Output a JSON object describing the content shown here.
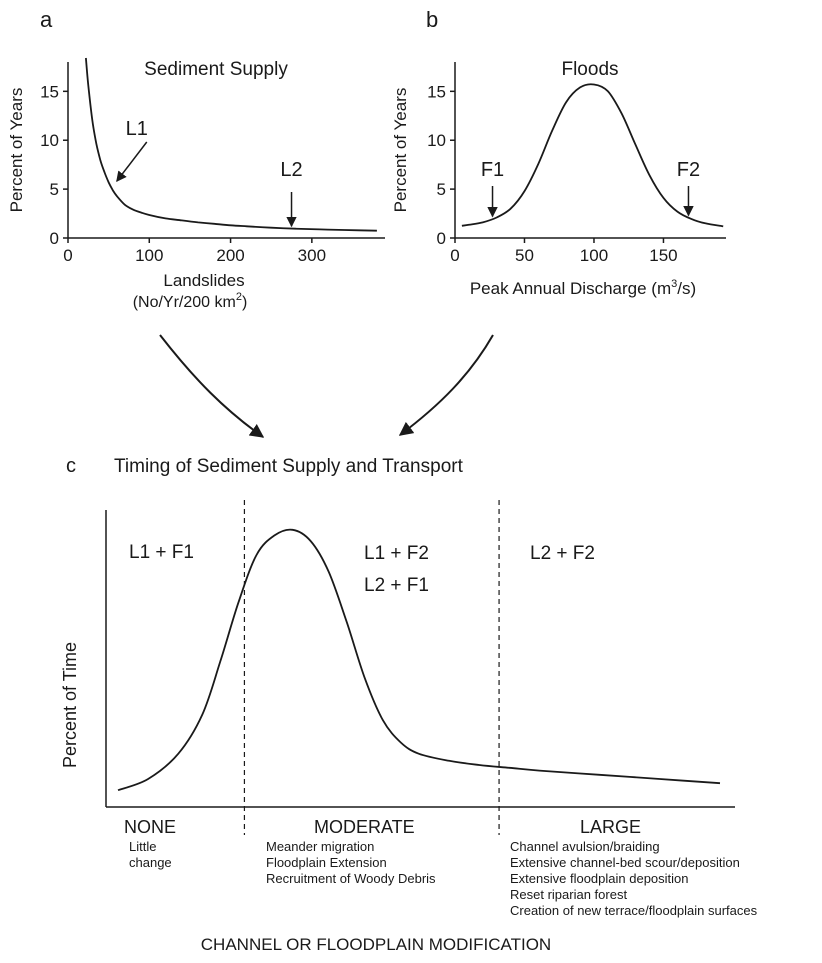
{
  "panels": {
    "a": {
      "letter": "a",
      "title": "Sediment Supply"
    },
    "b": {
      "letter": "b",
      "title": "Floods"
    },
    "c": {
      "letter": "c",
      "title": "Timing of Sediment Supply and Transport"
    }
  },
  "chart_data": [
    {
      "id": "a",
      "type": "line",
      "title": "Sediment Supply",
      "xlabel": "Landslides",
      "xlabel_line2_base": "(No/Yr/200 km",
      "xlabel_line2_sup": "2",
      "xlabel_line2_end": ")",
      "ylabel": "Percent of Years",
      "xlim": [
        0,
        390
      ],
      "ylim": [
        0,
        18
      ],
      "xticks": [
        0,
        100,
        200,
        300
      ],
      "yticks": [
        0,
        5,
        10,
        15
      ],
      "series": [
        {
          "x": [
            22,
            25,
            30,
            35,
            40,
            45,
            50,
            55,
            60,
            70,
            80,
            90,
            100,
            120,
            140,
            160,
            180,
            200,
            220,
            250,
            280,
            310,
            340,
            380
          ],
          "y": [
            18.8,
            15.6,
            12.0,
            9.6,
            7.9,
            6.7,
            5.7,
            4.9,
            4.3,
            3.4,
            2.9,
            2.6,
            2.35,
            2.0,
            1.8,
            1.6,
            1.45,
            1.3,
            1.2,
            1.05,
            0.95,
            0.88,
            0.82,
            0.75
          ]
        }
      ],
      "annotations": [
        {
          "label": "L1",
          "x": 60,
          "y": 5.5
        },
        {
          "label": "L2",
          "x": 275,
          "y": 0.9
        }
      ]
    },
    {
      "id": "b",
      "type": "line",
      "title": "Floods",
      "xlabel_base": "Peak Annual Discharge (m",
      "xlabel_sup": "3",
      "xlabel_end": "/s)",
      "ylabel": "Percent of Years",
      "xlim": [
        0,
        195
      ],
      "ylim": [
        0,
        18
      ],
      "xticks": [
        0,
        50,
        100,
        150
      ],
      "yticks": [
        0,
        5,
        10,
        15
      ],
      "series": [
        {
          "x": [
            5,
            10,
            20,
            30,
            40,
            50,
            60,
            70,
            80,
            90,
            100,
            110,
            120,
            130,
            140,
            150,
            160,
            170,
            180,
            193
          ],
          "y": [
            1.25,
            1.35,
            1.6,
            2.1,
            3.0,
            4.8,
            7.6,
            11.0,
            13.9,
            15.4,
            15.7,
            15.0,
            12.7,
            9.5,
            6.4,
            4.1,
            2.7,
            1.95,
            1.5,
            1.2
          ]
        }
      ],
      "annotations": [
        {
          "label": "F1",
          "x": 27,
          "y": 1.9
        },
        {
          "label": "F2",
          "x": 168,
          "y": 2.0
        }
      ]
    },
    {
      "id": "c",
      "type": "line",
      "title": "Timing of Sediment Supply and Transport",
      "ylabel": "Percent of Time",
      "xlim": [
        0,
        100
      ],
      "ylim": [
        0,
        100
      ],
      "dividers": [
        21,
        63.3
      ],
      "series": [
        {
          "x": [
            0,
            5,
            10,
            14,
            17,
            20,
            23,
            26,
            29,
            32,
            35,
            38,
            41,
            44,
            47,
            50,
            55,
            60,
            65,
            70,
            80,
            90,
            100
          ],
          "y": [
            6,
            10,
            19,
            33,
            52,
            73,
            90,
            97,
            99,
            95,
            84,
            66,
            46,
            31,
            23,
            19,
            16.5,
            15,
            14,
            13,
            11.5,
            10,
            8.5
          ]
        }
      ],
      "region_labels": [
        {
          "lines": [
            "L1 + F1"
          ]
        },
        {
          "lines": [
            "L1 + F2",
            "L2 + F1"
          ]
        },
        {
          "lines": [
            "L2 + F2"
          ]
        }
      ],
      "categories": [
        {
          "name": "NONE",
          "details": [
            "Little",
            "change"
          ]
        },
        {
          "name": "MODERATE",
          "details": [
            "Meander migration",
            "Floodplain Extension",
            "Recruitment of Woody Debris"
          ]
        },
        {
          "name": "LARGE",
          "details": [
            "Channel avulsion/braiding",
            "Extensive channel-bed scour/deposition",
            "Extensive floodplain deposition",
            "Reset riparian forest",
            "Creation of new terrace/floodplain surfaces"
          ]
        }
      ],
      "xlabel": "CHANNEL OR FLOODPLAIN MODIFICATION"
    }
  ]
}
